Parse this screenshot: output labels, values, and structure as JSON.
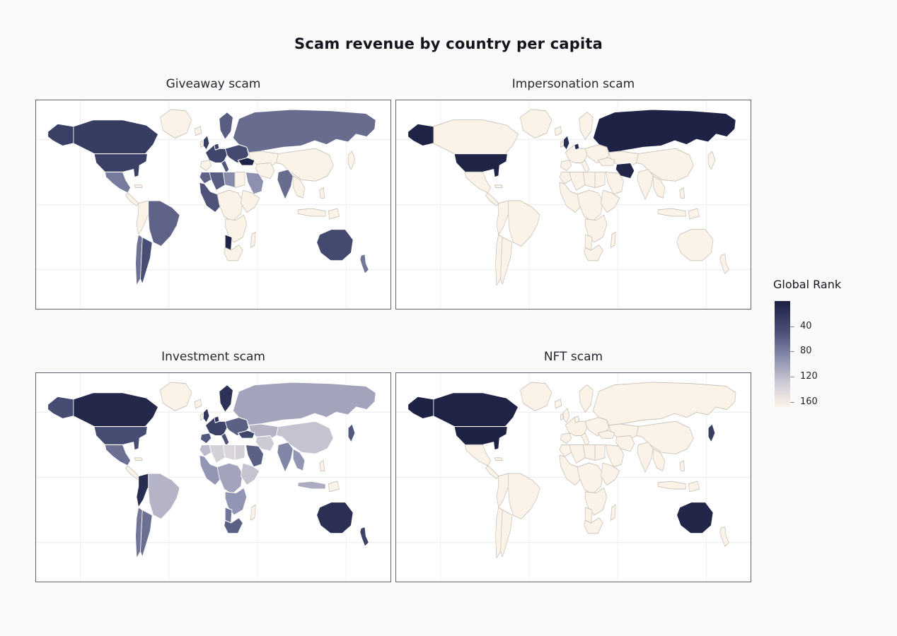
{
  "title": "Scam revenue by country per capita",
  "legend": {
    "title": "Global Rank",
    "ticks": [
      "40",
      "80",
      "120",
      "160"
    ],
    "tick_values": [
      40,
      80,
      120,
      160
    ],
    "min": 0,
    "max": 168,
    "colorscale": [
      {
        "t": 0.0,
        "color": "#1c2144"
      },
      {
        "t": 0.3,
        "color": "#4c5178"
      },
      {
        "t": 0.55,
        "color": "#8e91b0"
      },
      {
        "t": 0.78,
        "color": "#cfccd6"
      },
      {
        "t": 1.0,
        "color": "#fdf3e8"
      }
    ],
    "no_data_color": "#fcf3e8"
  },
  "chart_data": {
    "type": "choropleth",
    "title": "Scam revenue by country per capita",
    "legend_title": "Global Rank",
    "color_range": [
      0,
      168
    ],
    "colorbar_ticks": [
      40,
      80,
      120,
      160
    ],
    "color_meaning": "darker = lower global rank",
    "subplots": [
      {
        "label": "Giveaway scam",
        "ranks": {
          "turkey": 3,
          "namibia": 4,
          "canada": 28,
          "united_states": 32,
          "united_kingdom": 30,
          "west_europe": 38,
          "netherlands": 35,
          "east_europe": 42,
          "scandinavia": 58,
          "italy": 55,
          "russia": 68,
          "australia": 42,
          "new_zealand": 75,
          "brazil": 62,
          "argentina": 46,
          "chile": 72,
          "mexico": 78,
          "india": 68,
          "algeria": 58,
          "morocco": 62,
          "libya": 88,
          "west_africa": 52,
          "saudi_arabia": 92
        }
      },
      {
        "label": "Impersonation scam",
        "ranks": {
          "russia": 2,
          "united_states": 3,
          "iran": 6,
          "united_kingdom": 15,
          "netherlands": 12
        }
      },
      {
        "label": "Investment scam",
        "ranks": {
          "canada": 8,
          "colombia_peru": 12,
          "australia": 15,
          "scandinavia": 18,
          "netherlands": 20,
          "united_kingdom": 22,
          "new_zealand": 35,
          "west_europe": 35,
          "turkey": 38,
          "united_states": 45,
          "italy": 50,
          "spain": 55,
          "japan": 55,
          "east_europe": 60,
          "saudi_arabia": 60,
          "south_africa": 60,
          "mexico": 70,
          "argentina": 70,
          "chile": 75,
          "namibia": 75,
          "india": 85,
          "west_africa": 95,
          "southern_africa": 95,
          "se_asia": 95,
          "russia": 105,
          "central_africa": 105,
          "indonesia": 110,
          "brazil": 115,
          "kazakhstan": 115,
          "morocco": 120,
          "east_africa": 125,
          "china": 125,
          "iran": 130,
          "egypt": 135,
          "algeria": 135,
          "libya": 140
        }
      },
      {
        "label": "NFT scam",
        "ranks": {
          "united_states": 2,
          "canada": 3,
          "australia": 6,
          "japan": 30
        }
      }
    ]
  }
}
